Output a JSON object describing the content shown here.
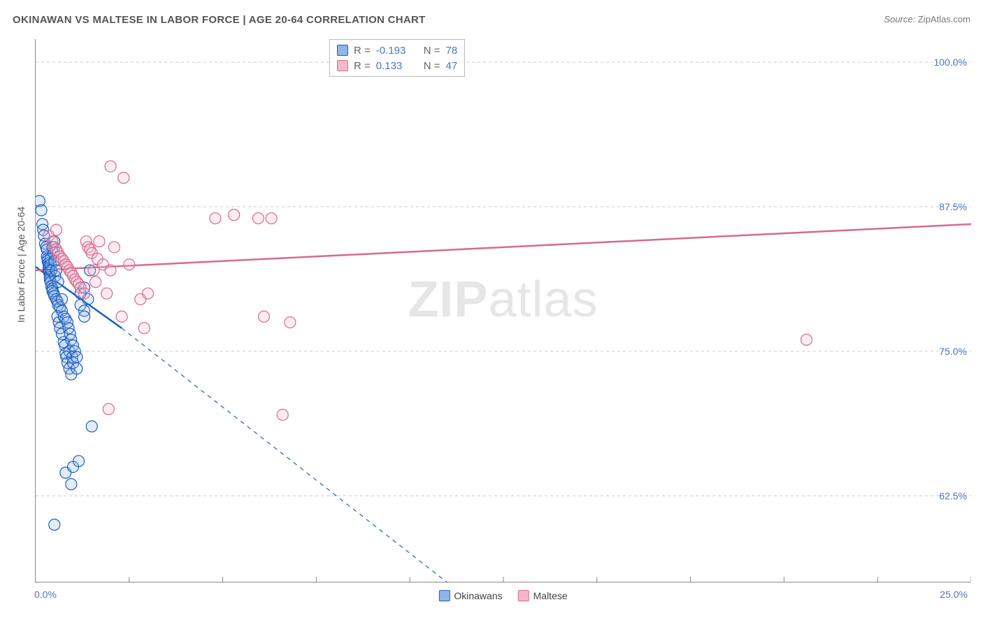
{
  "title": "OKINAWAN VS MALTESE IN LABOR FORCE | AGE 20-64 CORRELATION CHART",
  "source_label": "Source:",
  "source_name": "ZipAtlas.com",
  "watermark_primary": "ZIP",
  "watermark_secondary": "atlas",
  "y_axis_label": "In Labor Force | Age 20-64",
  "x_corner_left": "0.0%",
  "x_corner_right": "25.0%",
  "chart": {
    "type": "scatter",
    "background_color": "#ffffff",
    "axis_color": "#888888",
    "grid_color": "#cccccc",
    "grid_dash": "4,4",
    "xlim": [
      0,
      25
    ],
    "ylim": [
      55,
      102
    ],
    "x_ticks": [
      2.5,
      5,
      7.5,
      10,
      12.5,
      15,
      17.5,
      20,
      22.5,
      25
    ],
    "y_gridlines": [
      62.5,
      75,
      87.5,
      100
    ],
    "y_tick_labels": [
      "62.5%",
      "75.0%",
      "87.5%",
      "100.0%"
    ],
    "tick_label_color": "#4f74c4",
    "tick_label_fontsize": 14,
    "marker_radius": 8,
    "marker_stroke_width": 1.2,
    "marker_fill_opacity": 0.25,
    "regression_line_width": 2.5,
    "regression_dash_extrapolate": "6,6",
    "series": [
      {
        "name": "Okinawans",
        "stroke": "#1d5fbf",
        "fill": "#8fb5e6",
        "R": "-0.193",
        "N": "78",
        "regression_solid": {
          "x1": 0.0,
          "y1": 82.3,
          "x2": 2.3,
          "y2": 77.0
        },
        "regression_dash": {
          "x1": 2.3,
          "y1": 77.0,
          "x2": 11.0,
          "y2": 55.0
        },
        "points": [
          [
            0.1,
            88.0
          ],
          [
            0.15,
            87.2
          ],
          [
            0.18,
            86.0
          ],
          [
            0.2,
            85.5
          ],
          [
            0.22,
            85.0
          ],
          [
            0.25,
            84.3
          ],
          [
            0.28,
            84.0
          ],
          [
            0.3,
            83.8
          ],
          [
            0.3,
            83.2
          ],
          [
            0.32,
            83.0
          ],
          [
            0.32,
            82.8
          ],
          [
            0.34,
            82.6
          ],
          [
            0.35,
            82.4
          ],
          [
            0.35,
            82.2
          ],
          [
            0.36,
            82.0
          ],
          [
            0.36,
            81.8
          ],
          [
            0.38,
            81.6
          ],
          [
            0.38,
            81.4
          ],
          [
            0.38,
            81.2
          ],
          [
            0.4,
            81.0
          ],
          [
            0.4,
            83.0
          ],
          [
            0.4,
            82.5
          ],
          [
            0.42,
            82.0
          ],
          [
            0.42,
            80.6
          ],
          [
            0.45,
            80.4
          ],
          [
            0.45,
            80.2
          ],
          [
            0.45,
            84.0
          ],
          [
            0.48,
            80.0
          ],
          [
            0.48,
            83.5
          ],
          [
            0.5,
            79.8
          ],
          [
            0.5,
            82.8
          ],
          [
            0.5,
            84.5
          ],
          [
            0.52,
            81.5
          ],
          [
            0.55,
            79.5
          ],
          [
            0.55,
            82.0
          ],
          [
            0.58,
            79.3
          ],
          [
            0.58,
            78.0
          ],
          [
            0.6,
            79.0
          ],
          [
            0.6,
            81.0
          ],
          [
            0.62,
            77.5
          ],
          [
            0.65,
            78.8
          ],
          [
            0.65,
            77.0
          ],
          [
            0.7,
            78.5
          ],
          [
            0.7,
            76.5
          ],
          [
            0.7,
            79.5
          ],
          [
            0.75,
            78.0
          ],
          [
            0.75,
            75.8
          ],
          [
            0.78,
            75.5
          ],
          [
            0.8,
            77.8
          ],
          [
            0.8,
            74.8
          ],
          [
            0.82,
            74.5
          ],
          [
            0.85,
            77.5
          ],
          [
            0.85,
            74.0
          ],
          [
            0.88,
            77.0
          ],
          [
            0.9,
            73.5
          ],
          [
            0.9,
            75.0
          ],
          [
            0.92,
            76.5
          ],
          [
            0.95,
            73.0
          ],
          [
            0.95,
            76.0
          ],
          [
            0.98,
            74.5
          ],
          [
            1.0,
            75.5
          ],
          [
            1.0,
            74.0
          ],
          [
            1.05,
            75.0
          ],
          [
            1.1,
            73.5
          ],
          [
            1.1,
            74.5
          ],
          [
            1.2,
            79.0
          ],
          [
            1.2,
            80.0
          ],
          [
            1.3,
            80.5
          ],
          [
            1.3,
            78.5
          ],
          [
            1.4,
            79.5
          ],
          [
            1.45,
            82.0
          ],
          [
            1.5,
            68.5
          ],
          [
            0.8,
            64.5
          ],
          [
            0.5,
            60.0
          ],
          [
            0.95,
            63.5
          ],
          [
            1.0,
            65.0
          ],
          [
            1.15,
            65.5
          ],
          [
            1.3,
            78.0
          ]
        ]
      },
      {
        "name": "Maltese",
        "stroke": "#d66a8e",
        "fill": "#f4b8cb",
        "R": "0.133",
        "N": "47",
        "regression_solid": {
          "x1": 0.0,
          "y1": 82.0,
          "x2": 25.0,
          "y2": 86.0
        },
        "regression_dash": null,
        "points": [
          [
            0.35,
            85.0
          ],
          [
            0.45,
            84.5
          ],
          [
            0.5,
            84.0
          ],
          [
            0.55,
            83.8
          ],
          [
            0.6,
            83.5
          ],
          [
            0.65,
            83.2
          ],
          [
            0.7,
            83.0
          ],
          [
            0.75,
            82.8
          ],
          [
            0.8,
            82.5
          ],
          [
            0.85,
            82.3
          ],
          [
            0.9,
            82.0
          ],
          [
            0.95,
            81.8
          ],
          [
            1.0,
            81.5
          ],
          [
            1.05,
            81.2
          ],
          [
            1.1,
            81.0
          ],
          [
            1.15,
            80.8
          ],
          [
            1.2,
            80.5
          ],
          [
            1.3,
            80.0
          ],
          [
            1.35,
            84.5
          ],
          [
            1.4,
            84.0
          ],
          [
            1.45,
            83.8
          ],
          [
            1.5,
            83.5
          ],
          [
            1.55,
            82.0
          ],
          [
            1.6,
            81.0
          ],
          [
            1.65,
            83.0
          ],
          [
            1.7,
            84.5
          ],
          [
            1.8,
            82.5
          ],
          [
            1.9,
            80.0
          ],
          [
            2.0,
            82.0
          ],
          [
            2.1,
            84.0
          ],
          [
            2.0,
            91.0
          ],
          [
            2.35,
            90.0
          ],
          [
            2.3,
            78.0
          ],
          [
            2.5,
            82.5
          ],
          [
            2.8,
            79.5
          ],
          [
            2.9,
            77.0
          ],
          [
            3.0,
            80.0
          ],
          [
            1.95,
            70.0
          ],
          [
            6.6,
            69.5
          ],
          [
            4.8,
            86.5
          ],
          [
            5.3,
            86.8
          ],
          [
            5.95,
            86.5
          ],
          [
            6.3,
            86.5
          ],
          [
            6.1,
            78.0
          ],
          [
            6.8,
            77.5
          ],
          [
            20.6,
            76.0
          ],
          [
            0.55,
            85.5
          ]
        ]
      }
    ]
  },
  "legend_top": {
    "border_color": "#bbbbbb",
    "r_prefix": "R =",
    "n_prefix": "N ="
  },
  "legend_bottom": {
    "items": [
      "Okinawans",
      "Maltese"
    ]
  }
}
